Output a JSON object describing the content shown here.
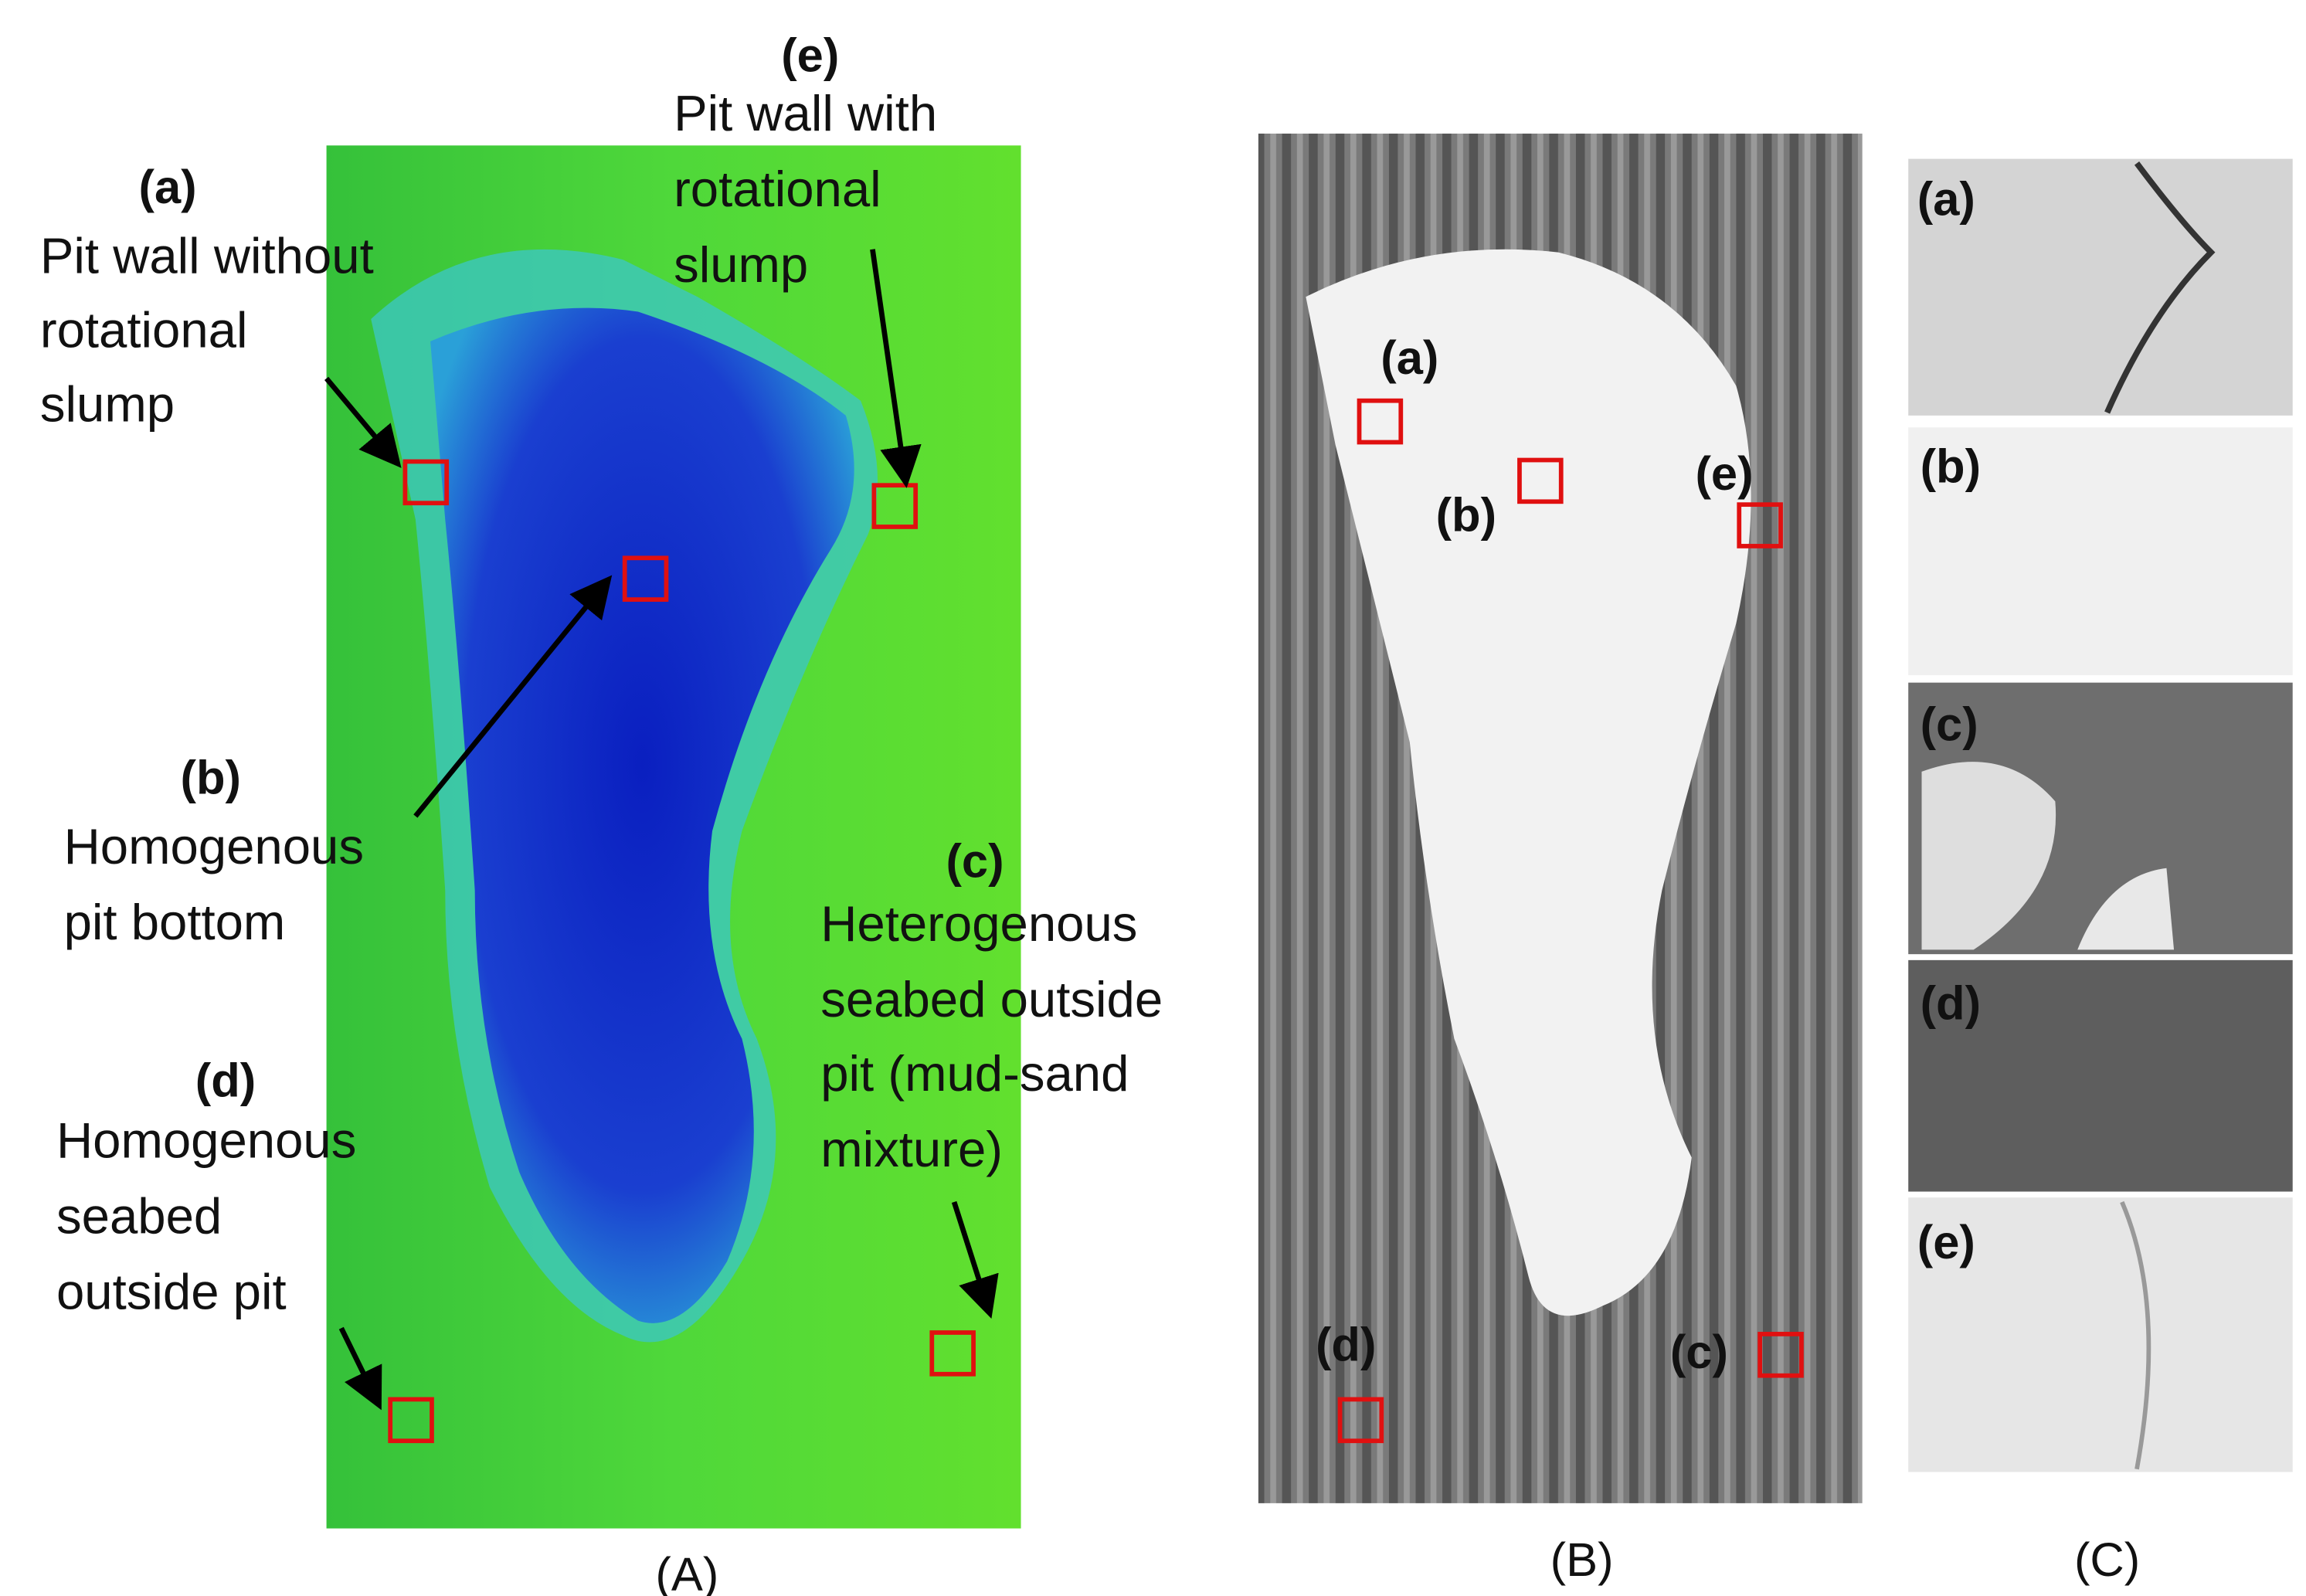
{
  "panels": {
    "A": {
      "label": "(A)",
      "annotations": [
        {
          "letter": "(a)",
          "lines": [
            "Pit wall without",
            "rotational",
            "slump"
          ]
        },
        {
          "letter": "(e)",
          "lines": [
            "Pit wall with",
            "rotational",
            "slump"
          ]
        },
        {
          "letter": "(b)",
          "lines": [
            "Homogenous",
            "pit bottom"
          ]
        },
        {
          "letter": "(c)",
          "lines": [
            "Heterogenous",
            "seabed outside",
            "pit (mud-sand",
            "mixture)"
          ]
        },
        {
          "letter": "(d)",
          "lines": [
            "Homogenous",
            "seabed",
            "outside pit"
          ]
        }
      ]
    },
    "B": {
      "label": "(B)",
      "markers": [
        "(a)",
        "(b)",
        "(e)",
        "(d)",
        "(c)"
      ]
    },
    "C": {
      "label": "(C)",
      "tiles": [
        "(a)",
        "(b)",
        "(c)",
        "(d)",
        "(e)"
      ]
    }
  }
}
